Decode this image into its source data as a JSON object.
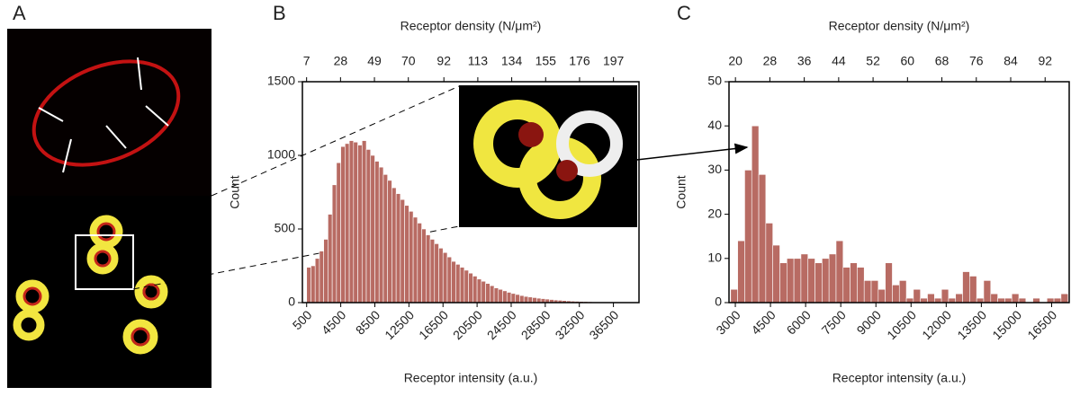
{
  "panel_labels": [
    "A",
    "B",
    "C"
  ],
  "chart_data": [
    {
      "type": "histogram",
      "x_label": "Receptor intensity (a.u.)",
      "x2_label": "Receptor density (N/μm²)",
      "y_label": "Count",
      "bins": [
        500,
        1000,
        1500,
        2000,
        2500,
        3000,
        3500,
        4000,
        4500,
        5000,
        5500,
        6000,
        6500,
        7000,
        7500,
        8000,
        8500,
        9000,
        9500,
        10000,
        10500,
        11000,
        11500,
        12000,
        12500,
        13000,
        13500,
        14000,
        14500,
        15000,
        15500,
        16000,
        16500,
        17000,
        17500,
        18000,
        18500,
        19000,
        19500,
        20000,
        20500,
        21000,
        21500,
        22000,
        22500,
        23000,
        23500,
        24000,
        24500,
        25000,
        25500,
        26000,
        26500,
        27000,
        27500,
        28000,
        28500,
        29000,
        29500,
        30000,
        30500,
        31000,
        31500,
        32000,
        32500,
        33000,
        33500,
        34000,
        34500,
        35000,
        35500,
        36000,
        36500,
        37000
      ],
      "values": [
        240,
        250,
        300,
        350,
        430,
        600,
        800,
        950,
        1060,
        1080,
        1100,
        1090,
        1070,
        1100,
        1040,
        1000,
        960,
        920,
        870,
        830,
        780,
        740,
        700,
        660,
        620,
        580,
        540,
        500,
        460,
        430,
        400,
        370,
        340,
        310,
        280,
        260,
        240,
        220,
        200,
        180,
        160,
        145,
        130,
        115,
        100,
        90,
        80,
        70,
        62,
        55,
        48,
        42,
        38,
        34,
        30,
        27,
        24,
        21,
        18,
        16,
        14,
        12,
        10,
        9,
        8,
        7,
        6,
        5,
        4,
        3,
        3,
        2,
        2
      ],
      "color": "#b86b63",
      "xlim": [
        0,
        39500
      ],
      "xticks": [
        500,
        4500,
        8500,
        12500,
        16500,
        20500,
        24500,
        28500,
        32500,
        36500
      ],
      "x2lim": [
        4.4,
        212.8
      ],
      "x2ticks": [
        7,
        28,
        49,
        70,
        92,
        113,
        134,
        155,
        176,
        197
      ],
      "ylim": [
        0,
        1500
      ],
      "yticks": [
        0,
        500,
        1000,
        1500
      ]
    },
    {
      "type": "histogram",
      "x_label": "Receptor intensity (a.u.)",
      "x2_label": "Receptor density (N/μm²)",
      "y_label": "Count",
      "bins": [
        2800,
        3100,
        3400,
        3700,
        4000,
        4300,
        4600,
        4900,
        5200,
        5500,
        5800,
        6100,
        6400,
        6700,
        7000,
        7300,
        7600,
        7900,
        8200,
        8500,
        8800,
        9100,
        9400,
        9700,
        10000,
        10300,
        10600,
        10900,
        11200,
        11500,
        11800,
        12100,
        12400,
        12700,
        13000,
        13300,
        13600,
        13900,
        14200,
        14500,
        14800,
        15100,
        15400,
        15700,
        16000,
        16300,
        16600,
        16900,
        17200
      ],
      "values": [
        3,
        14,
        30,
        40,
        29,
        18,
        13,
        9,
        10,
        10,
        11,
        10,
        9,
        10,
        11,
        14,
        8,
        9,
        8,
        5,
        5,
        3,
        9,
        4,
        5,
        1,
        3,
        1,
        2,
        1,
        3,
        1,
        2,
        7,
        6,
        1,
        5,
        2,
        1,
        1,
        2,
        1,
        0,
        1,
        0,
        1,
        1,
        2
      ],
      "color": "#b86b63",
      "xlim": [
        2730,
        17250
      ],
      "xticks": [
        3000,
        4500,
        6000,
        7500,
        9000,
        10500,
        12000,
        13500,
        15000,
        16500
      ],
      "x2lim": [
        18.5,
        97.6
      ],
      "x2ticks": [
        20,
        28,
        36,
        44,
        52,
        60,
        68,
        76,
        84,
        92
      ],
      "ylim": [
        0,
        50
      ],
      "yticks": [
        0,
        10,
        20,
        30,
        40,
        50
      ]
    }
  ]
}
